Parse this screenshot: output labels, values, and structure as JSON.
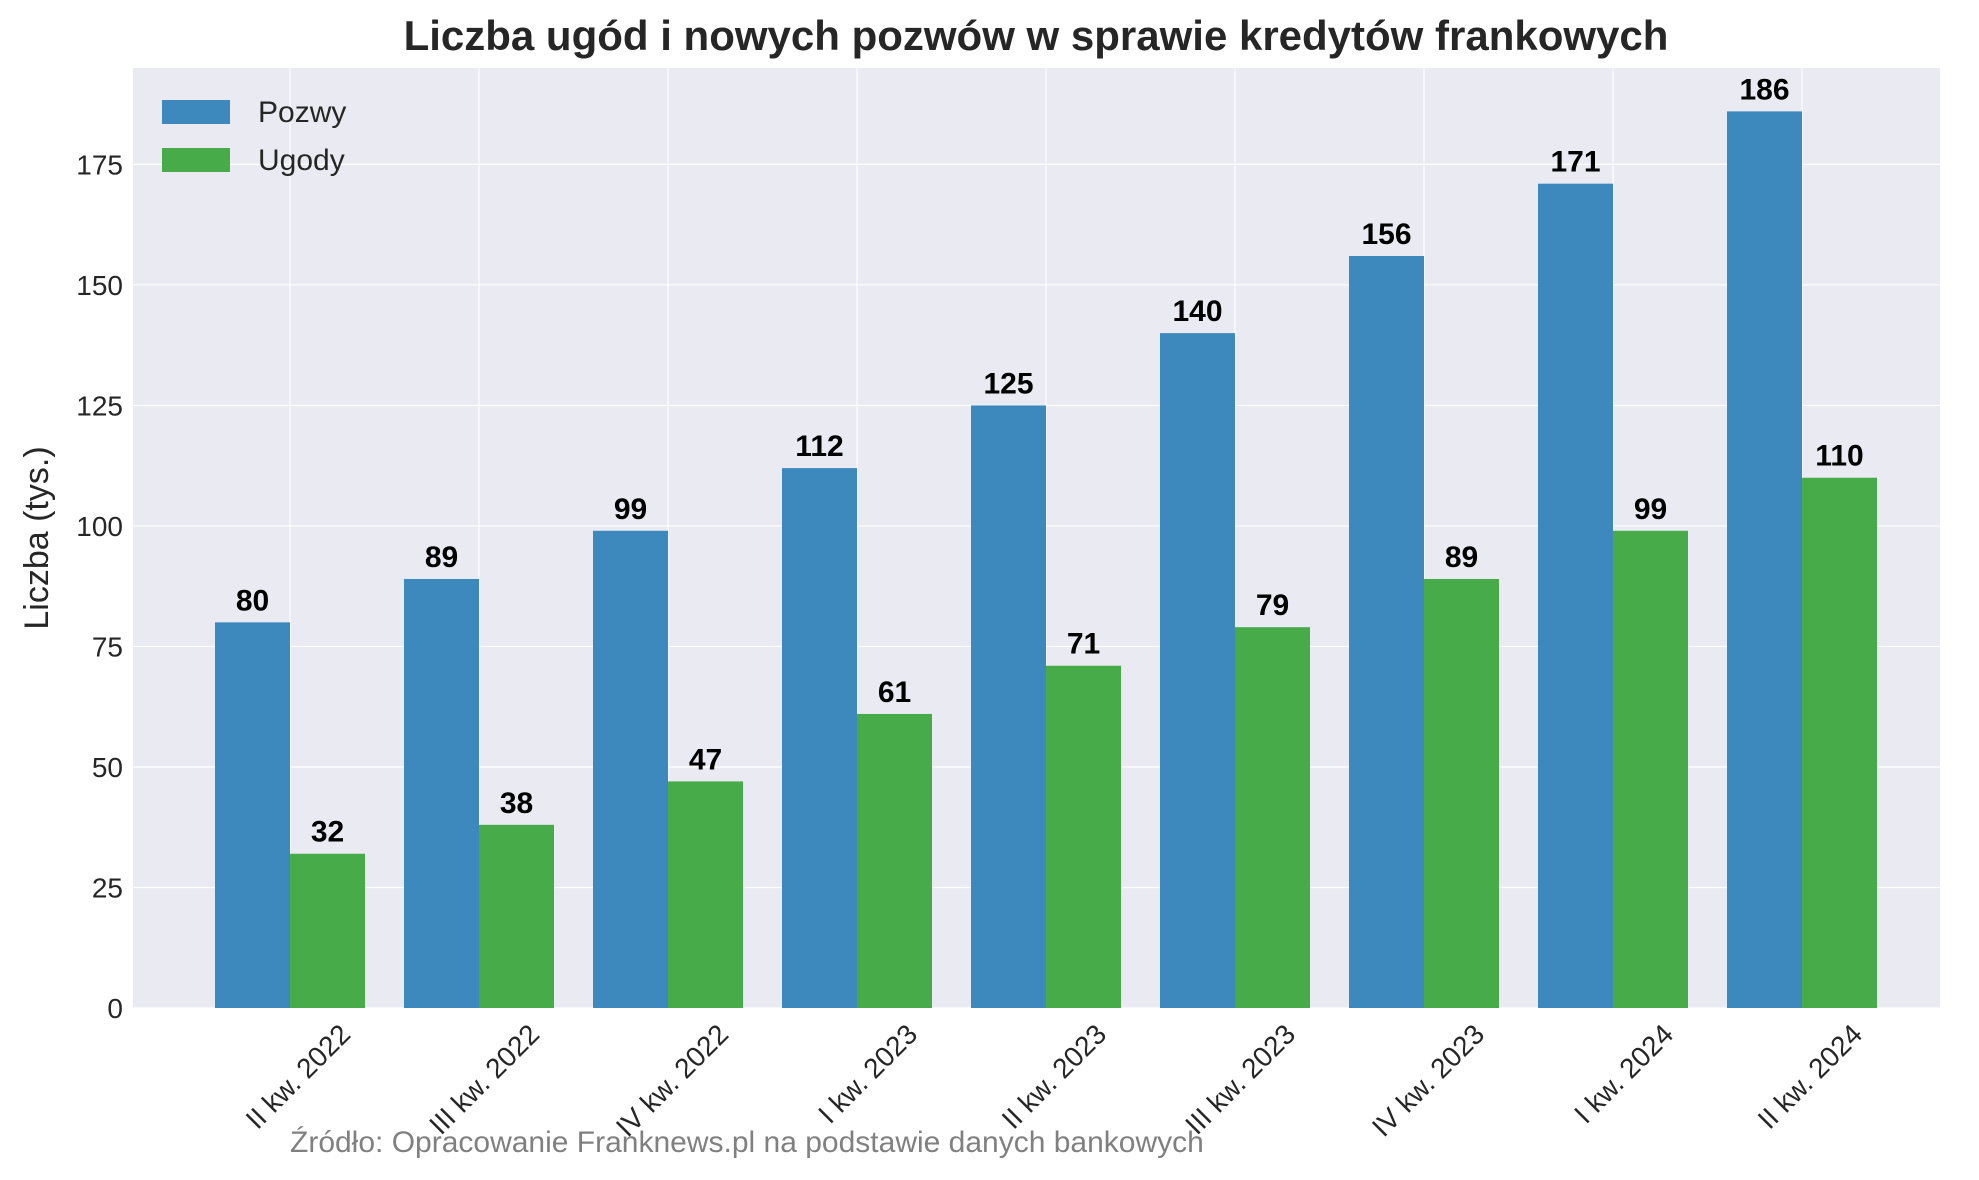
{
  "chart_data": {
    "type": "bar",
    "title": "Liczba ugód i nowych pozwów w sprawie kredytów frankowych",
    "xlabel": "",
    "ylabel": "Liczba (tys.)",
    "ylim": [
      0,
      195
    ],
    "yticks": [
      0,
      25,
      50,
      75,
      100,
      125,
      150,
      175
    ],
    "categories": [
      "II kw. 2022",
      "III kw. 2022",
      "IV kw. 2022",
      "I kw. 2023",
      "II kw. 2023",
      "III kw. 2023",
      "IV kw. 2023",
      "I kw. 2024",
      "II kw. 2024"
    ],
    "series": [
      {
        "name": "Pozwy",
        "color": "#3d88bd",
        "values": [
          80,
          89,
          99,
          112,
          125,
          140,
          156,
          171,
          186
        ]
      },
      {
        "name": "Ugody",
        "color": "#47ab4a",
        "values": [
          32,
          38,
          47,
          61,
          71,
          79,
          89,
          99,
          110
        ]
      }
    ],
    "grid": true,
    "legend_position": "top-left",
    "background": "#eaeaf2",
    "source_note": "Źródło: Opracowanie Franknews.pl na podstawie danych bankowych"
  }
}
